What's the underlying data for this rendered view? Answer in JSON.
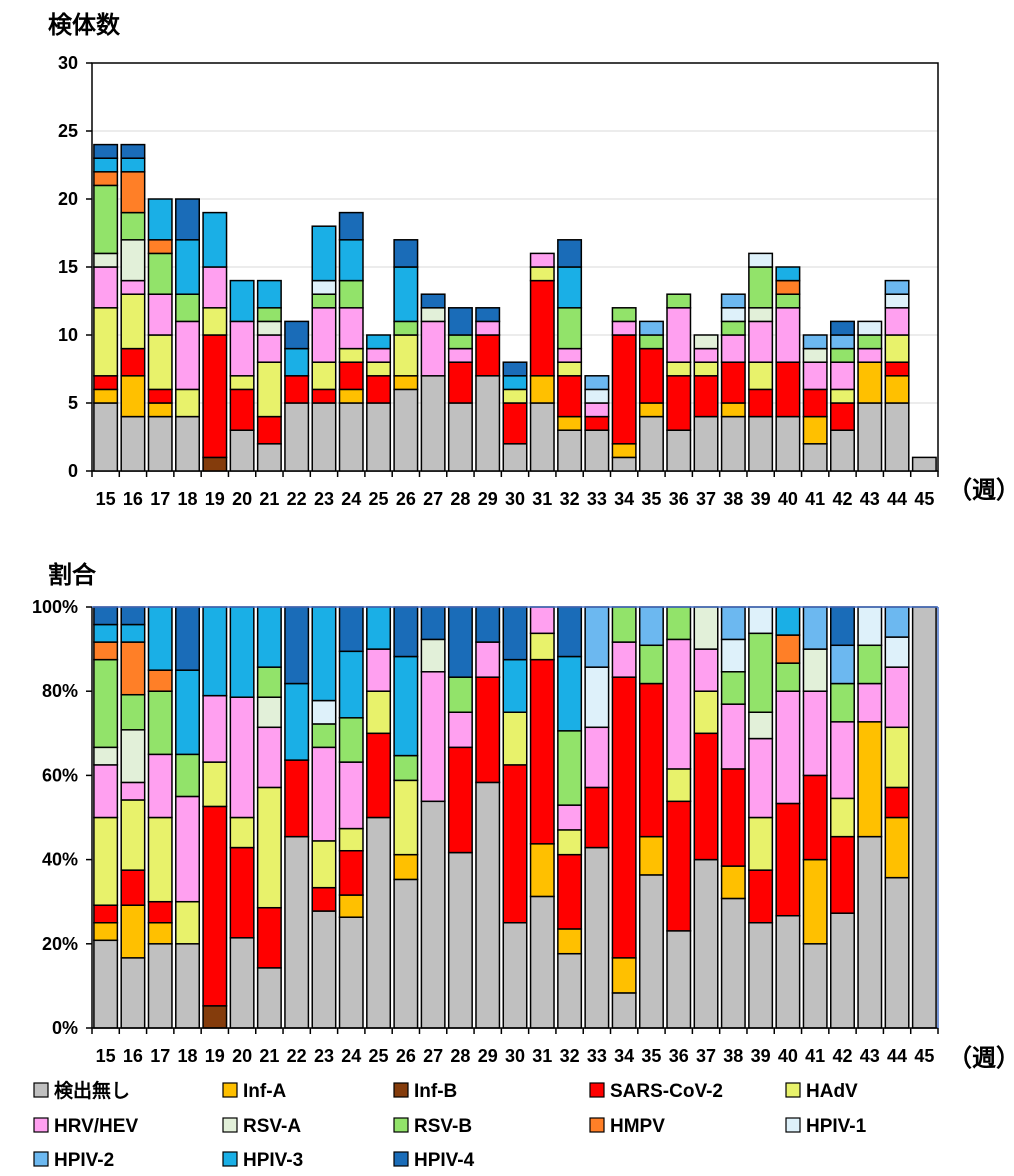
{
  "chart_data": [
    {
      "type": "bar",
      "stacked": true,
      "title": "検体数",
      "x_unit": "（週）",
      "categories": [
        "15",
        "16",
        "17",
        "18",
        "19",
        "20",
        "21",
        "22",
        "23",
        "24",
        "25",
        "26",
        "27",
        "28",
        "29",
        "30",
        "31",
        "32",
        "33",
        "34",
        "35",
        "36",
        "37",
        "38",
        "39",
        "40",
        "41",
        "42",
        "43",
        "44",
        "45"
      ],
      "ylim": [
        0,
        30
      ],
      "yticks": [
        0,
        5,
        10,
        15,
        20,
        25,
        30
      ],
      "grid": true,
      "series": [
        {
          "name": "検出無し",
          "color": "#C0C0C0",
          "values": [
            5,
            4,
            4,
            4,
            0,
            3,
            2,
            5,
            5,
            5,
            5,
            6,
            7,
            5,
            7,
            2,
            5,
            3,
            3,
            1,
            4,
            3,
            4,
            4,
            4,
            4,
            2,
            3,
            5,
            5,
            1
          ]
        },
        {
          "name": "Inf-A",
          "color": "#FFC000",
          "values": [
            1,
            3,
            1,
            0,
            0,
            0,
            0,
            0,
            0,
            1,
            0,
            1,
            0,
            0,
            0,
            0,
            2,
            1,
            0,
            1,
            1,
            0,
            0,
            1,
            0,
            0,
            2,
            0,
            3,
            2,
            0
          ]
        },
        {
          "name": "Inf-B",
          "color": "#843C0C",
          "values": [
            0,
            0,
            0,
            0,
            1,
            0,
            0,
            0,
            0,
            0,
            0,
            0,
            0,
            0,
            0,
            0,
            0,
            0,
            0,
            0,
            0,
            0,
            0,
            0,
            0,
            0,
            0,
            0,
            0,
            0,
            0
          ]
        },
        {
          "name": "SARS-CoV-2",
          "color": "#FF0000",
          "values": [
            1,
            2,
            1,
            0,
            9,
            3,
            2,
            2,
            1,
            2,
            2,
            0,
            0,
            3,
            3,
            3,
            7,
            3,
            1,
            8,
            4,
            4,
            3,
            3,
            2,
            4,
            2,
            2,
            0,
            1,
            0
          ]
        },
        {
          "name": "HAdV",
          "color": "#E8F26B",
          "values": [
            5,
            4,
            4,
            2,
            2,
            1,
            4,
            0,
            2,
            1,
            1,
            3,
            0,
            0,
            0,
            1,
            1,
            1,
            0,
            0,
            0,
            1,
            1,
            0,
            2,
            0,
            0,
            1,
            0,
            2,
            0
          ]
        },
        {
          "name": "HRV/HEV",
          "color": "#FFA0F0",
          "values": [
            3,
            1,
            3,
            5,
            3,
            4,
            2,
            0,
            4,
            3,
            1,
            0,
            4,
            1,
            1,
            0,
            1,
            1,
            1,
            1,
            0,
            4,
            1,
            2,
            3,
            4,
            2,
            2,
            1,
            2,
            0
          ]
        },
        {
          "name": "RSV-A",
          "color": "#E2F0D9",
          "values": [
            1,
            3,
            0,
            0,
            0,
            0,
            1,
            0,
            0,
            0,
            0,
            0,
            1,
            0,
            0,
            0,
            0,
            0,
            0,
            0,
            0,
            0,
            1,
            0,
            1,
            0,
            1,
            0,
            0,
            0,
            0
          ]
        },
        {
          "name": "RSV-B",
          "color": "#92E36A",
          "values": [
            5,
            2,
            3,
            2,
            0,
            0,
            1,
            0,
            1,
            2,
            0,
            1,
            0,
            1,
            0,
            0,
            0,
            3,
            0,
            1,
            1,
            1,
            0,
            1,
            3,
            1,
            0,
            1,
            1,
            0,
            0
          ]
        },
        {
          "name": "HMPV",
          "color": "#FF7F27",
          "values": [
            1,
            3,
            1,
            0,
            0,
            0,
            0,
            0,
            0,
            0,
            0,
            0,
            0,
            0,
            0,
            0,
            0,
            0,
            0,
            0,
            0,
            0,
            0,
            0,
            0,
            1,
            0,
            0,
            0,
            0,
            0
          ]
        },
        {
          "name": "HPIV-1",
          "color": "#DEF1FA",
          "values": [
            0,
            0,
            0,
            0,
            0,
            0,
            0,
            0,
            1,
            0,
            0,
            0,
            0,
            0,
            0,
            0,
            0,
            0,
            1,
            0,
            0,
            0,
            0,
            1,
            1,
            0,
            0,
            0,
            1,
            1,
            0
          ]
        },
        {
          "name": "HPIV-2",
          "color": "#6CB8F0",
          "values": [
            0,
            0,
            0,
            0,
            0,
            0,
            0,
            0,
            0,
            0,
            0,
            0,
            0,
            0,
            0,
            0,
            0,
            0,
            1,
            0,
            1,
            0,
            0,
            1,
            0,
            0,
            1,
            1,
            0,
            1,
            0
          ]
        },
        {
          "name": "HPIV-3",
          "color": "#1AAFE6",
          "values": [
            1,
            1,
            3,
            4,
            4,
            3,
            2,
            2,
            4,
            3,
            1,
            4,
            0,
            0,
            0,
            1,
            0,
            3,
            0,
            0,
            0,
            0,
            0,
            0,
            0,
            1,
            0,
            0,
            0,
            0,
            0
          ]
        },
        {
          "name": "HPIV-4",
          "color": "#1A6CB8",
          "values": [
            1,
            1,
            0,
            3,
            0,
            0,
            0,
            2,
            0,
            2,
            0,
            2,
            1,
            2,
            1,
            1,
            0,
            2,
            0,
            0,
            0,
            0,
            0,
            0,
            0,
            0,
            0,
            1,
            0,
            0,
            0
          ]
        }
      ]
    },
    {
      "type": "bar",
      "stacked": true,
      "normalized": true,
      "title": "割合",
      "x_unit": "（週）",
      "categories": [
        "15",
        "16",
        "17",
        "18",
        "19",
        "20",
        "21",
        "22",
        "23",
        "24",
        "25",
        "26",
        "27",
        "28",
        "29",
        "30",
        "31",
        "32",
        "33",
        "34",
        "35",
        "36",
        "37",
        "38",
        "39",
        "40",
        "41",
        "42",
        "43",
        "44",
        "45"
      ],
      "ylim": [
        0,
        100
      ],
      "yticks": [
        "0%",
        "20%",
        "40%",
        "60%",
        "80%",
        "100%"
      ],
      "grid": false,
      "note": "Same series as 検体数 chart, shown as percentage of each week's total."
    }
  ],
  "legend": {
    "placement": "bottom",
    "items": [
      "検出無し",
      "Inf-A",
      "Inf-B",
      "SARS-CoV-2",
      "HAdV",
      "HRV/HEV",
      "RSV-A",
      "RSV-B",
      "HMPV",
      "HPIV-1",
      "HPIV-2",
      "HPIV-3",
      "HPIV-4"
    ]
  }
}
